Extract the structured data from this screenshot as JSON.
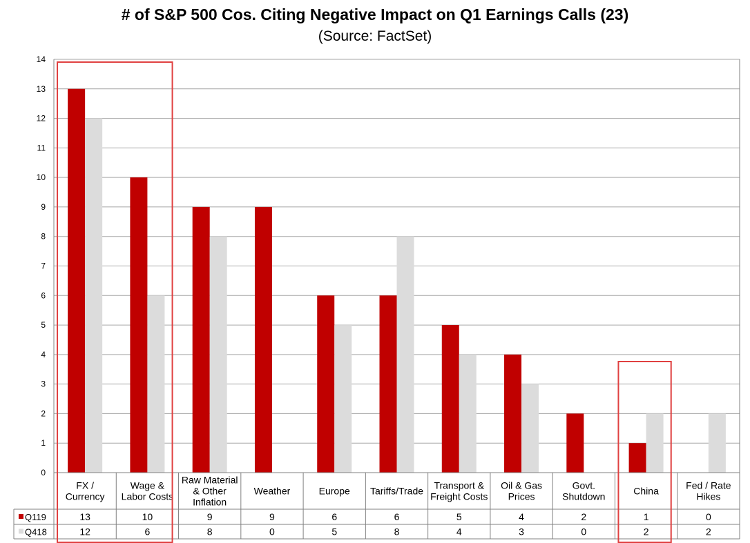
{
  "chart_data": {
    "type": "bar",
    "title": "# of S&P 500 Cos. Citing Negative Impact on Q1 Earnings Calls (23)",
    "subtitle": "(Source: FactSet)",
    "categories": [
      [
        "FX /",
        "Currency"
      ],
      [
        "Wage &",
        "Labor Costs"
      ],
      [
        "Raw Material",
        "& Other",
        "Inflation"
      ],
      [
        "Weather"
      ],
      [
        "Europe"
      ],
      [
        "Tariffs/Trade"
      ],
      [
        "Transport &",
        "Freight Costs"
      ],
      [
        "Oil & Gas",
        "Prices"
      ],
      [
        "Govt.",
        "Shutdown"
      ],
      [
        "China"
      ],
      [
        "Fed / Rate",
        "Hikes"
      ]
    ],
    "series": [
      {
        "name": "Q119",
        "color": "#c00000",
        "values": [
          13,
          10,
          9,
          9,
          6,
          6,
          5,
          4,
          2,
          1,
          0
        ]
      },
      {
        "name": "Q418",
        "color": "#dcdcdc",
        "values": [
          12,
          6,
          8,
          0,
          5,
          8,
          4,
          3,
          0,
          2,
          2
        ]
      }
    ],
    "yticks": [
      0,
      1,
      2,
      3,
      4,
      5,
      6,
      7,
      8,
      9,
      10,
      11,
      12,
      13,
      14
    ],
    "ylim": [
      0,
      14
    ],
    "grid": true,
    "legend": "data-table-left",
    "highlight_categories": [
      [
        0,
        1
      ],
      [
        9,
        9
      ]
    ],
    "highlight_color": "#e04040",
    "gridline_color": "#a6a6a6"
  }
}
